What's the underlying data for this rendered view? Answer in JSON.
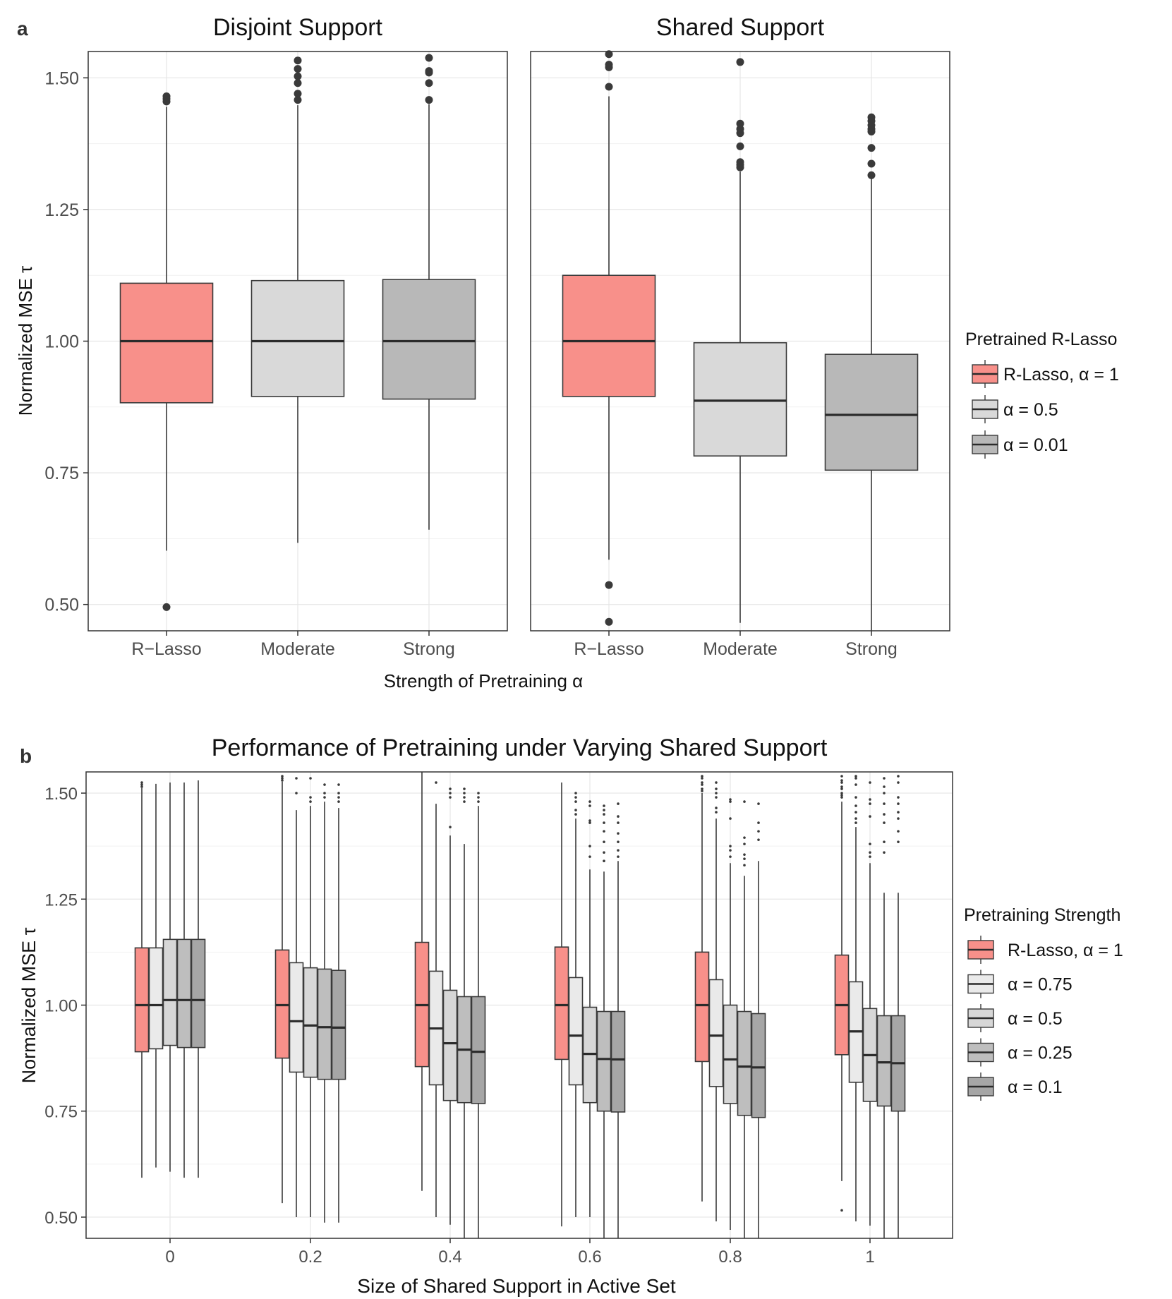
{
  "chart_data": [
    {
      "type": "boxplot",
      "panel_label": "a",
      "xlabel": "Strength of Pretraining α",
      "ylabel": "Normalized MSE τ",
      "ylim": [
        0.45,
        1.55
      ],
      "yticks": [
        0.5,
        0.75,
        1.0,
        1.25,
        1.5
      ],
      "ytick_labels": [
        "0.50",
        "0.75",
        "1.00",
        "1.25",
        "1.50"
      ],
      "grid": true,
      "legend": {
        "title": "Pretrained R-Lasso",
        "position": "right",
        "entries": [
          {
            "label": "R-Lasso,  α = 1",
            "color": "#F8908A"
          },
          {
            "label": "α = 0.5",
            "color": "#D9D9D9"
          },
          {
            "label": "α = 0.01",
            "color": "#B8B8B8"
          }
        ]
      },
      "facets": [
        {
          "title": "Disjoint Support",
          "categories": [
            "R−Lasso",
            "Moderate",
            "Strong"
          ],
          "boxes": [
            {
              "color": "#F8908A",
              "q1": 0.883,
              "median": 1.0,
              "q3": 1.11,
              "whisker_low": 0.602,
              "whisker_high": 1.445,
              "outliers": [
                0.495,
                1.455,
                1.46,
                1.465
              ]
            },
            {
              "color": "#D9D9D9",
              "q1": 0.895,
              "median": 1.0,
              "q3": 1.115,
              "whisker_low": 0.617,
              "whisker_high": 1.448,
              "outliers": [
                1.458,
                1.47,
                1.49,
                1.503,
                1.517,
                1.533
              ]
            },
            {
              "color": "#B8B8B8",
              "q1": 0.89,
              "median": 1.0,
              "q3": 1.117,
              "whisker_low": 0.642,
              "whisker_high": 1.45,
              "outliers": [
                1.458,
                1.49,
                1.51,
                1.513,
                1.538
              ]
            }
          ]
        },
        {
          "title": "Shared Support",
          "categories": [
            "R−Lasso",
            "Moderate",
            "Strong"
          ],
          "boxes": [
            {
              "color": "#F8908A",
              "q1": 0.895,
              "median": 1.0,
              "q3": 1.125,
              "whisker_low": 0.585,
              "whisker_high": 1.465,
              "outliers": [
                0.467,
                0.537,
                1.483,
                1.52,
                1.525,
                1.545
              ]
            },
            {
              "color": "#D9D9D9",
              "q1": 0.782,
              "median": 0.887,
              "q3": 0.997,
              "whisker_low": 0.465,
              "whisker_high": 1.322,
              "outliers": [
                1.33,
                1.335,
                1.34,
                1.37,
                1.395,
                1.403,
                1.413,
                1.53
              ]
            },
            {
              "color": "#B8B8B8",
              "q1": 0.755,
              "median": 0.86,
              "q3": 0.975,
              "whisker_low": 0.45,
              "whisker_high": 1.31,
              "outliers": [
                1.315,
                1.337,
                1.367,
                1.398,
                1.403,
                1.41,
                1.418,
                1.425
              ]
            }
          ]
        }
      ]
    },
    {
      "type": "boxplot",
      "panel_label": "b",
      "title": "Performance of Pretraining under Varying Shared Support",
      "xlabel": "Size of Shared Support in Active Set",
      "ylabel": "Normalized MSE τ",
      "ylim": [
        0.45,
        1.55
      ],
      "yticks": [
        0.5,
        0.75,
        1.0,
        1.25,
        1.5
      ],
      "ytick_labels": [
        "0.50",
        "0.75",
        "1.00",
        "1.25",
        "1.50"
      ],
      "categories": [
        "0",
        "0.2",
        "0.4",
        "0.6",
        "0.8",
        "1"
      ],
      "grid": true,
      "legend": {
        "title": "Pretraining Strength",
        "position": "right",
        "entries": [
          {
            "label": "R-Lasso,  α = 1",
            "color": "#F8908A"
          },
          {
            "label": "α = 0.75",
            "color": "#EAEAEA"
          },
          {
            "label": "α = 0.5",
            "color": "#D7D7D7"
          },
          {
            "label": "α = 0.25",
            "color": "#BEBEBE"
          },
          {
            "label": "α = 0.1",
            "color": "#A6A6A6"
          }
        ]
      },
      "series": [
        {
          "name": "R-Lasso, α = 1",
          "color": "#F8908A",
          "boxes": [
            {
              "q1": 0.89,
              "median": 1.0,
              "q3": 1.135,
              "whisker_low": 0.593,
              "whisker_high": 1.512,
              "outliers": [
                1.515,
                1.52,
                1.525
              ]
            },
            {
              "q1": 0.875,
              "median": 1.0,
              "q3": 1.13,
              "whisker_low": 0.533,
              "whisker_high": 1.527,
              "outliers": [
                1.53,
                1.535,
                1.54
              ]
            },
            {
              "q1": 0.855,
              "median": 1.0,
              "q3": 1.148,
              "whisker_low": 0.562,
              "whisker_high": 1.55,
              "outliers": []
            },
            {
              "q1": 0.872,
              "median": 1.0,
              "q3": 1.137,
              "whisker_low": 0.478,
              "whisker_high": 1.525,
              "outliers": []
            },
            {
              "q1": 0.867,
              "median": 1.0,
              "q3": 1.125,
              "whisker_low": 0.537,
              "whisker_high": 1.5,
              "outliers": [
                1.505,
                1.51,
                1.52,
                1.525,
                1.535,
                1.54
              ]
            },
            {
              "q1": 0.883,
              "median": 1.0,
              "q3": 1.118,
              "whisker_low": 0.585,
              "whisker_high": 1.48,
              "outliers": [
                0.516,
                1.49,
                1.495,
                1.5,
                1.51,
                1.515,
                1.525,
                1.53,
                1.54
              ]
            }
          ]
        },
        {
          "name": "α = 0.75",
          "color": "#EAEAEA",
          "boxes": [
            {
              "q1": 0.897,
              "median": 1.0,
              "q3": 1.135,
              "whisker_low": 0.617,
              "whisker_high": 1.522,
              "outliers": []
            },
            {
              "q1": 0.842,
              "median": 0.962,
              "q3": 1.1,
              "whisker_low": 0.5,
              "whisker_high": 1.46,
              "outliers": [
                1.5,
                1.535
              ]
            },
            {
              "q1": 0.812,
              "median": 0.945,
              "q3": 1.08,
              "whisker_low": 0.5,
              "whisker_high": 1.475,
              "outliers": [
                1.525
              ]
            },
            {
              "q1": 0.812,
              "median": 0.928,
              "q3": 1.065,
              "whisker_low": 0.5,
              "whisker_high": 1.44,
              "outliers": [
                1.45,
                1.46,
                1.48,
                1.49,
                1.5
              ]
            },
            {
              "q1": 0.808,
              "median": 0.928,
              "q3": 1.06,
              "whisker_low": 0.49,
              "whisker_high": 1.44,
              "outliers": [
                1.455,
                1.465,
                1.49,
                1.5,
                1.51,
                1.525
              ]
            },
            {
              "q1": 0.818,
              "median": 0.938,
              "q3": 1.055,
              "whisker_low": 0.49,
              "whisker_high": 1.42,
              "outliers": [
                1.43,
                1.44,
                1.455,
                1.47,
                1.49,
                1.52,
                1.535,
                1.54
              ]
            }
          ]
        },
        {
          "name": "α = 0.5",
          "color": "#D7D7D7",
          "boxes": [
            {
              "q1": 0.905,
              "median": 1.012,
              "q3": 1.155,
              "whisker_low": 0.607,
              "whisker_high": 1.525,
              "outliers": []
            },
            {
              "q1": 0.83,
              "median": 0.952,
              "q3": 1.088,
              "whisker_low": 0.5,
              "whisker_high": 1.47,
              "outliers": [
                1.48,
                1.49,
                1.535
              ]
            },
            {
              "q1": 0.775,
              "median": 0.91,
              "q3": 1.035,
              "whisker_low": 0.482,
              "whisker_high": 1.4,
              "outliers": [
                1.42,
                1.49,
                1.5,
                1.51
              ]
            },
            {
              "q1": 0.77,
              "median": 0.885,
              "q3": 0.995,
              "whisker_low": 0.5,
              "whisker_high": 1.32,
              "outliers": [
                1.35,
                1.375,
                1.43,
                1.435,
                1.47,
                1.48
              ]
            },
            {
              "q1": 0.768,
              "median": 0.872,
              "q3": 1.0,
              "whisker_low": 0.47,
              "whisker_high": 1.335,
              "outliers": [
                1.35,
                1.365,
                1.375,
                1.44,
                1.48,
                1.485
              ]
            },
            {
              "q1": 0.773,
              "median": 0.882,
              "q3": 0.992,
              "whisker_low": 0.48,
              "whisker_high": 1.335,
              "outliers": [
                1.35,
                1.36,
                1.38,
                1.445,
                1.475,
                1.485,
                1.525
              ]
            }
          ]
        },
        {
          "name": "α = 0.25",
          "color": "#BEBEBE",
          "boxes": [
            {
              "q1": 0.9,
              "median": 1.012,
              "q3": 1.155,
              "whisker_low": 0.593,
              "whisker_high": 1.525,
              "outliers": []
            },
            {
              "q1": 0.825,
              "median": 0.948,
              "q3": 1.085,
              "whisker_low": 0.487,
              "whisker_high": 1.48,
              "outliers": [
                1.49,
                1.5,
                1.52
              ]
            },
            {
              "q1": 0.77,
              "median": 0.895,
              "q3": 1.02,
              "whisker_low": 0.45,
              "whisker_high": 1.38,
              "outliers": [
                1.48,
                1.49,
                1.5,
                1.51
              ]
            },
            {
              "q1": 0.75,
              "median": 0.873,
              "q3": 0.985,
              "whisker_low": 0.45,
              "whisker_high": 1.315,
              "outliers": [
                1.34,
                1.36,
                1.385,
                1.41,
                1.43,
                1.45,
                1.46,
                1.47
              ]
            },
            {
              "q1": 0.74,
              "median": 0.855,
              "q3": 0.985,
              "whisker_low": 0.45,
              "whisker_high": 1.305,
              "outliers": [
                1.33,
                1.345,
                1.355,
                1.38,
                1.395,
                1.48
              ]
            },
            {
              "q1": 0.762,
              "median": 0.865,
              "q3": 0.975,
              "whisker_low": 0.45,
              "whisker_high": 1.265,
              "outliers": [
                1.36,
                1.385,
                1.43,
                1.45,
                1.475,
                1.5,
                1.515,
                1.535
              ]
            }
          ]
        },
        {
          "name": "α = 0.1",
          "color": "#A6A6A6",
          "boxes": [
            {
              "q1": 0.9,
              "median": 1.012,
              "q3": 1.155,
              "whisker_low": 0.593,
              "whisker_high": 1.53,
              "outliers": []
            },
            {
              "q1": 0.825,
              "median": 0.947,
              "q3": 1.082,
              "whisker_low": 0.487,
              "whisker_high": 1.465,
              "outliers": [
                1.48,
                1.49,
                1.5,
                1.52
              ]
            },
            {
              "q1": 0.768,
              "median": 0.89,
              "q3": 1.02,
              "whisker_low": 0.45,
              "whisker_high": 1.47,
              "outliers": [
                1.48,
                1.49,
                1.5
              ]
            },
            {
              "q1": 0.748,
              "median": 0.872,
              "q3": 0.985,
              "whisker_low": 0.45,
              "whisker_high": 1.34,
              "outliers": [
                1.35,
                1.365,
                1.385,
                1.405,
                1.43,
                1.445,
                1.475
              ]
            },
            {
              "q1": 0.735,
              "median": 0.853,
              "q3": 0.98,
              "whisker_low": 0.45,
              "whisker_high": 1.34,
              "outliers": [
                1.39,
                1.41,
                1.43,
                1.475
              ]
            },
            {
              "q1": 0.75,
              "median": 0.863,
              "q3": 0.975,
              "whisker_low": 0.45,
              "whisker_high": 1.265,
              "outliers": [
                1.385,
                1.41,
                1.44,
                1.455,
                1.475,
                1.49,
                1.525,
                1.54
              ]
            }
          ]
        }
      ]
    }
  ]
}
